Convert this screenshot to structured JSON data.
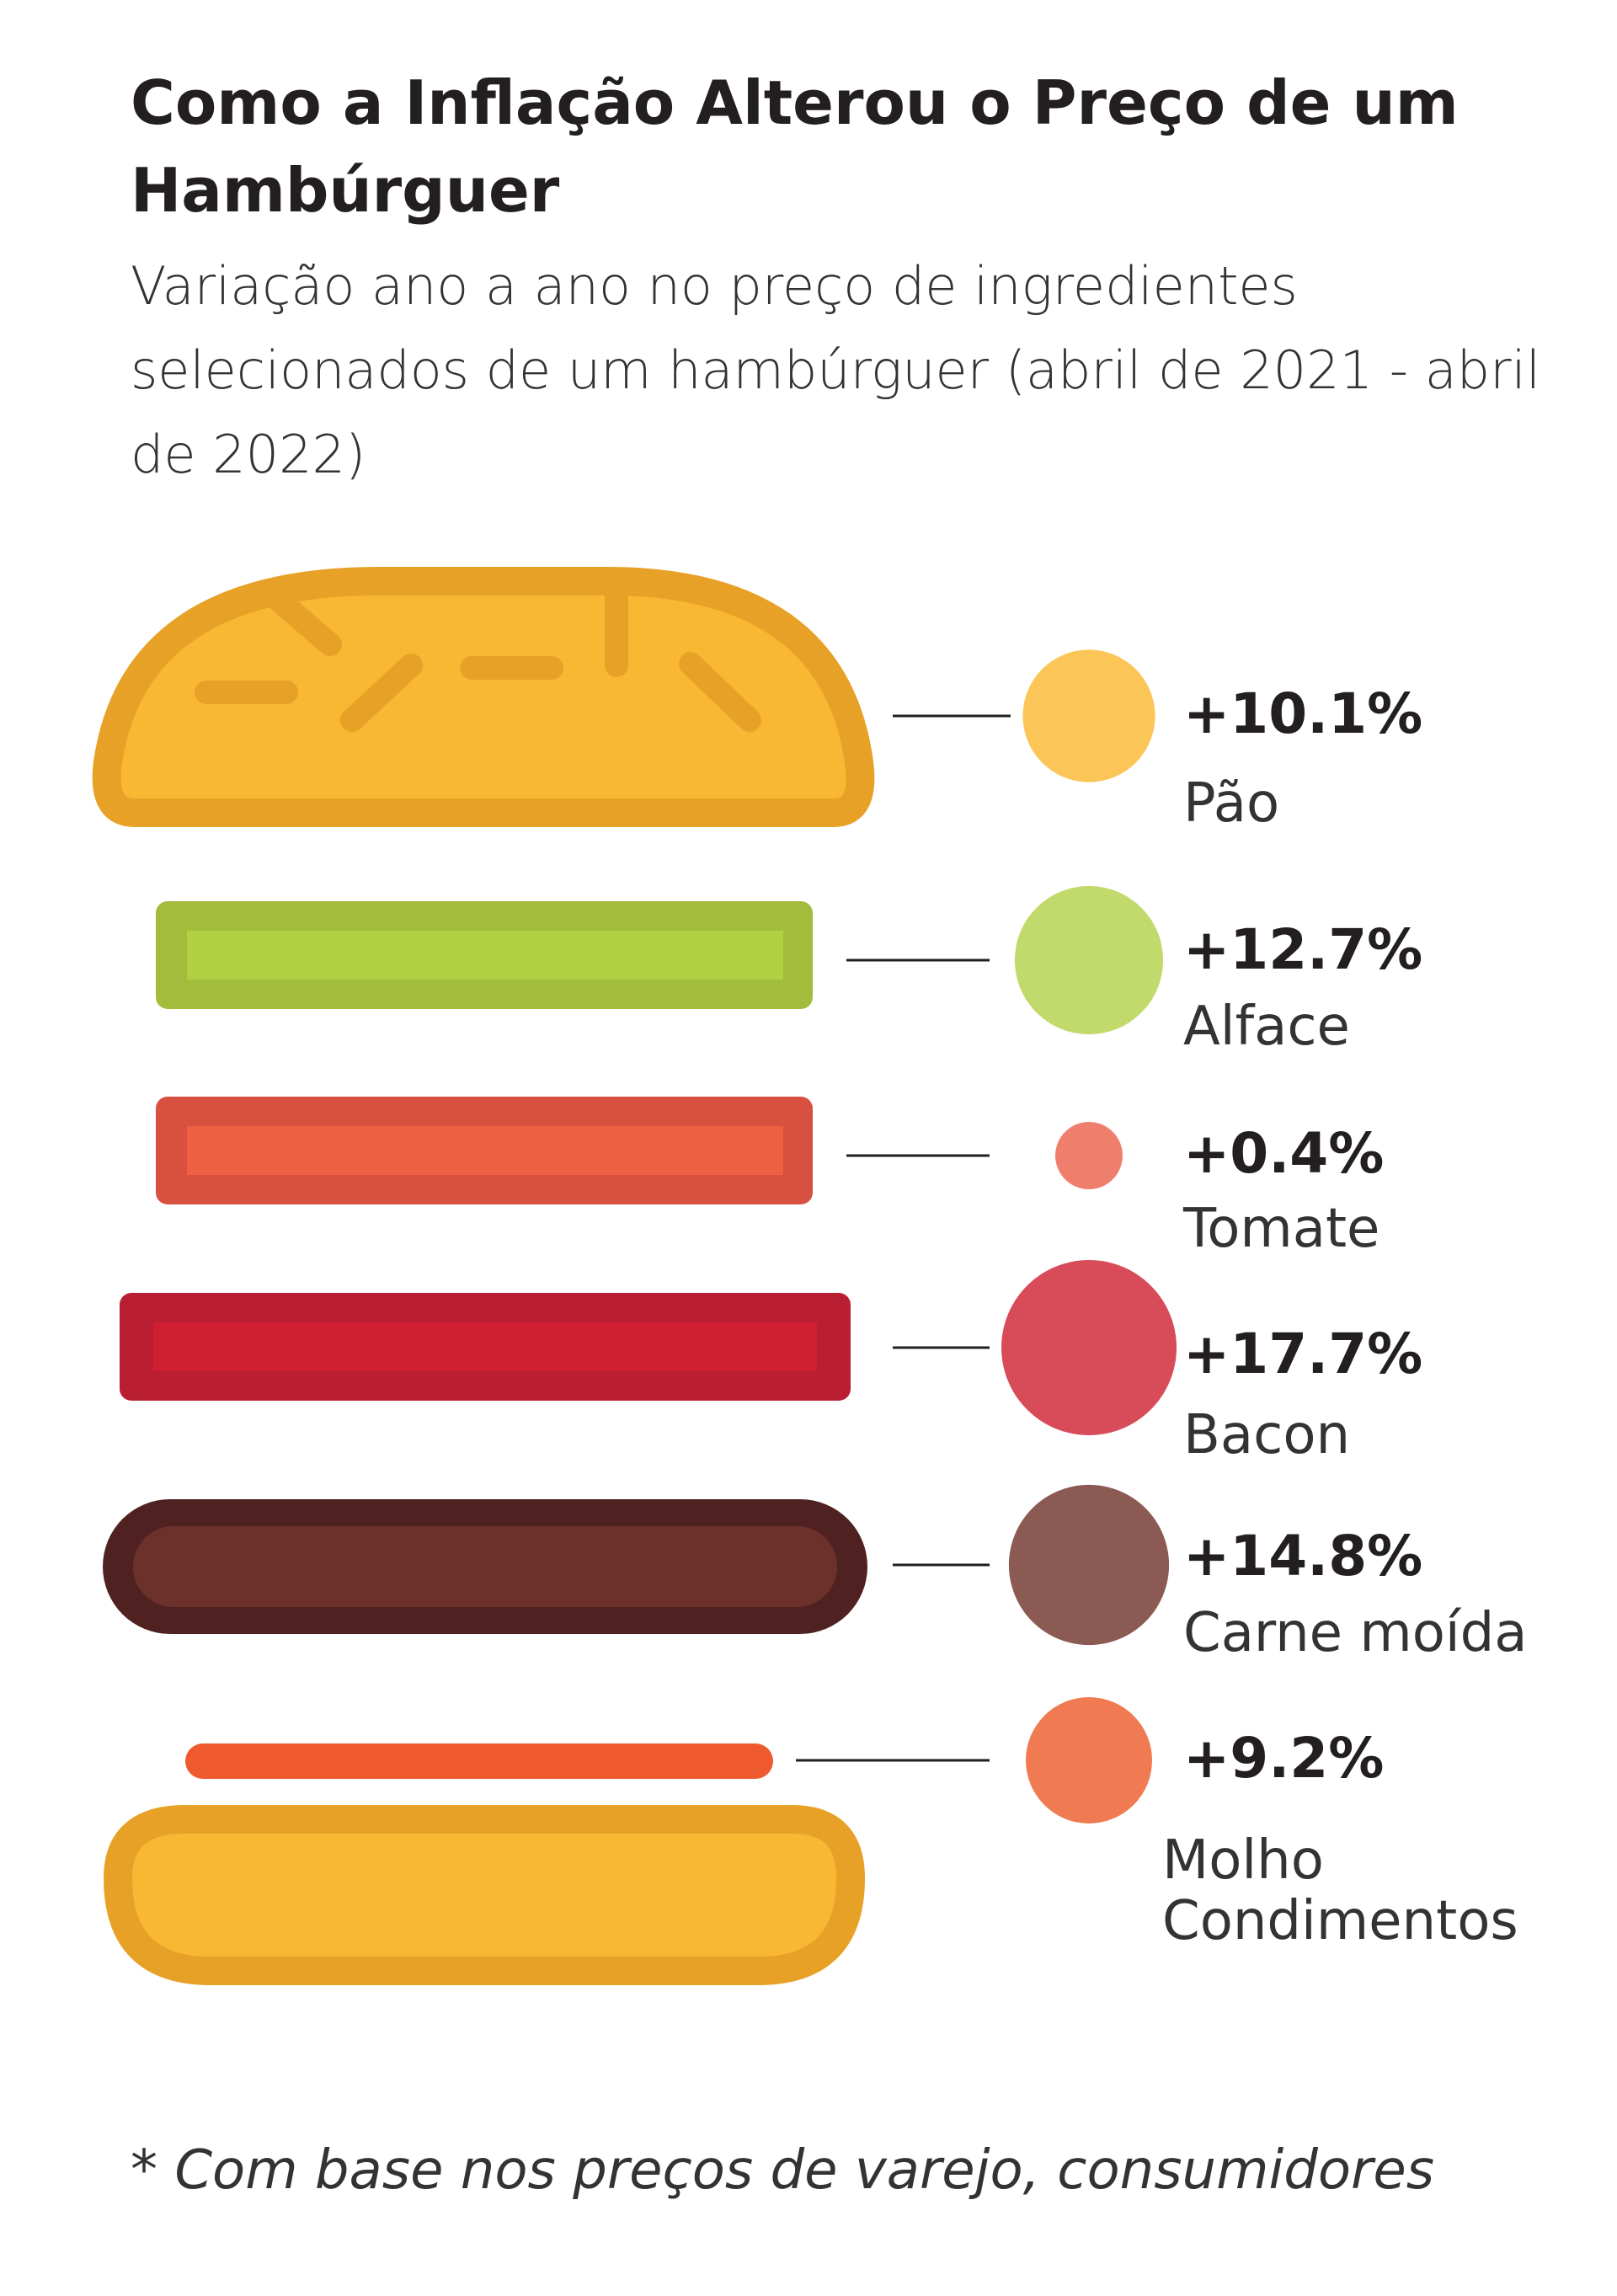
{
  "title": "Como a Inflação Alterou o Preço de um Hambúrguer",
  "subtitle": "Variação ano a ano no preço de ingredientes selecionados de um hambúrguer (abril de 2021 - abril de 2022)",
  "footnote": "* Com base nos preços de varejo, consumidores",
  "chart_data": {
    "type": "bubble",
    "title": "Como a Inflação Alterou o Preço de um Hambúrguer",
    "subtitle": "Variação ano a ano no preço de ingredientes selecionados de um hambúrguer (abril de 2021 - abril de 2022)",
    "unit": "%",
    "categories": [
      "Pão",
      "Alface",
      "Tomate",
      "Bacon",
      "Carne moída",
      "Molho Condimentos"
    ],
    "values": [
      10.1,
      12.7,
      0.4,
      17.7,
      14.8,
      9.2
    ],
    "value_labels": [
      "+10.1%",
      "+12.7%",
      "+0.4%",
      "+17.7%",
      "+14.8%",
      "+9.2%"
    ],
    "label_lines": [
      [
        "Pão"
      ],
      [
        "Alface"
      ],
      [
        "Tomate"
      ],
      [
        "Bacon"
      ],
      [
        "Carne moída"
      ],
      [
        "Molho",
        "Condimentos"
      ]
    ],
    "colors": [
      "#fbc657",
      "#c2d96b",
      "#ef7f6c",
      "#d84b59",
      "#8b5a52",
      "#f07a52"
    ]
  }
}
